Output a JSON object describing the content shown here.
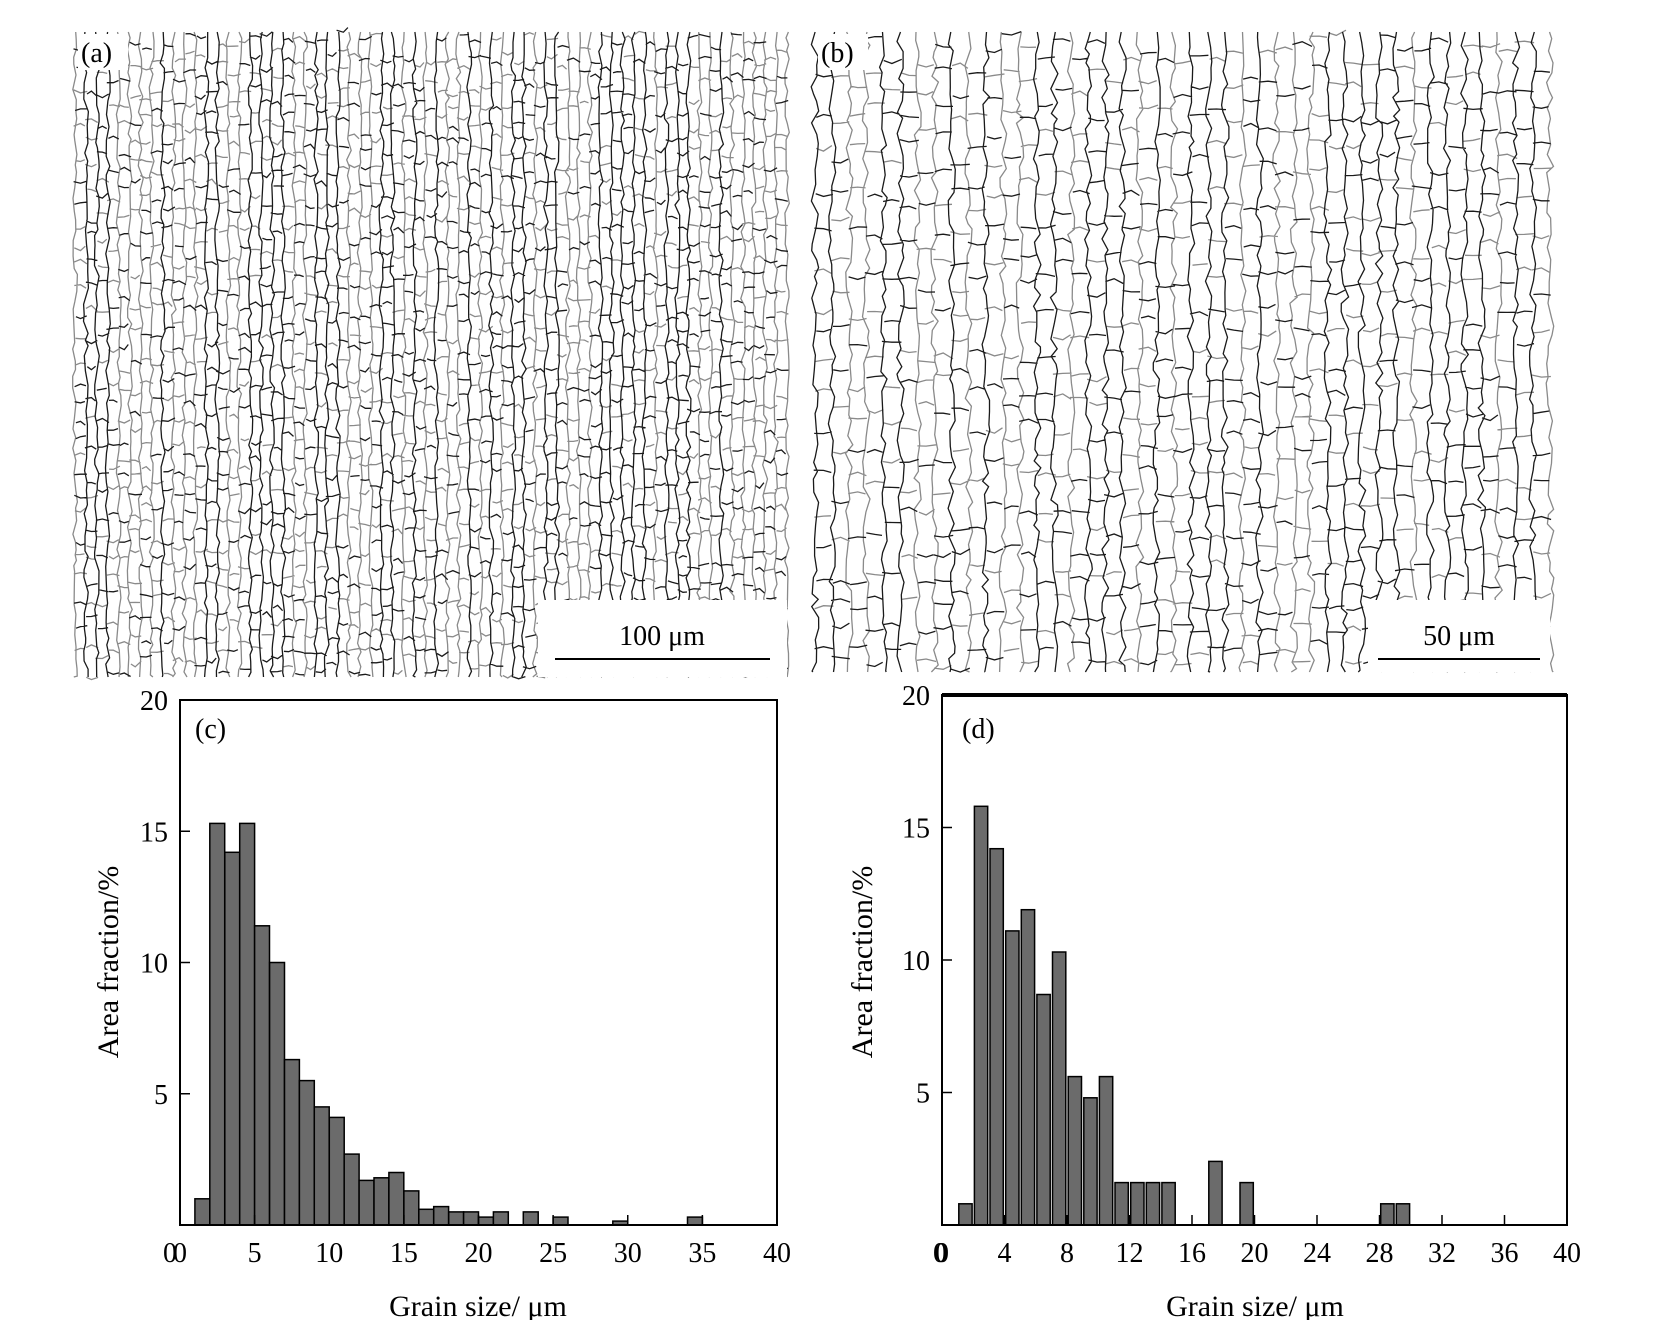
{
  "panels": {
    "a": {
      "label": "(a)",
      "scale_bar": "100 μm"
    },
    "b": {
      "label": "(b)",
      "scale_bar": "50 μm"
    }
  },
  "colors": {
    "bar_fill": "#6b6b6b",
    "bar_stroke": "#000000",
    "boundary_dark": "#1a1a1a",
    "boundary_gray": "#8a8a8a"
  },
  "chart_data": [
    {
      "type": "bar",
      "panel_label": "(c)",
      "title": "",
      "xlabel": "Grain size/ μm",
      "ylabel": "Area fraction/%",
      "xlim": [
        0,
        40
      ],
      "ylim": [
        0,
        20
      ],
      "xticks": [
        0,
        5,
        10,
        15,
        20,
        25,
        30,
        35,
        40
      ],
      "yticks": [
        5,
        10,
        15,
        20
      ],
      "y_origin_label": "0",
      "bin_width": 1,
      "x": [
        1.5,
        2.5,
        3.5,
        4.5,
        5.5,
        6.5,
        7.5,
        8.5,
        9.5,
        10.5,
        11.5,
        12.5,
        13.5,
        14.5,
        15.5,
        16.5,
        17.5,
        18.5,
        19.5,
        20.5,
        21.5,
        23.5,
        25.5,
        29.5,
        34.5
      ],
      "values": [
        1.0,
        15.3,
        14.2,
        15.3,
        11.4,
        10.0,
        6.3,
        5.5,
        4.5,
        4.1,
        2.7,
        1.7,
        1.8,
        2.0,
        1.3,
        0.6,
        0.7,
        0.5,
        0.5,
        0.3,
        0.5,
        0.5,
        0.3,
        0.15,
        0.3
      ],
      "grid": false
    },
    {
      "type": "bar",
      "panel_label": "(d)",
      "title": "",
      "xlabel": "Grain size/ μm",
      "ylabel": "Area fraction/%",
      "xlim": [
        0,
        40
      ],
      "ylim": [
        0,
        20
      ],
      "xticks": [
        0,
        4,
        8,
        12,
        16,
        20,
        24,
        28,
        32,
        36,
        40
      ],
      "yticks": [
        5,
        10,
        15,
        20
      ],
      "y_origin_label": "0",
      "bin_width": 0.85,
      "x": [
        1.5,
        2.5,
        3.5,
        4.5,
        5.5,
        6.5,
        7.5,
        8.5,
        9.5,
        10.5,
        11.5,
        12.5,
        13.5,
        14.5,
        17.5,
        19.5,
        28.5,
        29.5
      ],
      "values": [
        0.8,
        15.8,
        14.2,
        11.1,
        11.9,
        8.7,
        10.3,
        5.6,
        4.8,
        5.6,
        1.6,
        1.6,
        1.6,
        1.6,
        2.4,
        1.6,
        0.8,
        0.8
      ],
      "grid": false
    }
  ]
}
